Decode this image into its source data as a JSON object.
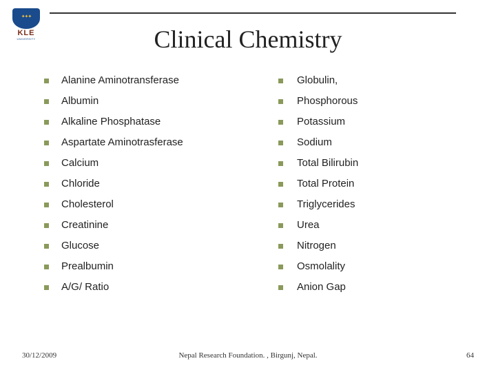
{
  "logo": {
    "kle": "KLE",
    "university": "UNIVERSITY"
  },
  "title": "Clinical Chemistry",
  "bullet_color": "#8a9a5b",
  "columns": {
    "left": [
      "Alanine Aminotransferase",
      "Albumin",
      "Alkaline Phosphatase",
      "Aspartate Aminotrasferase",
      "Calcium",
      "Chloride",
      "Cholesterol",
      "Creatinine",
      "Glucose",
      "Prealbumin",
      "A/G/ Ratio"
    ],
    "right": [
      "Globulin,",
      "Phosphorous",
      "Potassium",
      "Sodium",
      "Total Bilirubin",
      "Total Protein",
      "Triglycerides",
      "Urea",
      "Nitrogen",
      "Osmolality",
      "Anion Gap"
    ]
  },
  "footer": {
    "date": "30/12/2009",
    "center": "Nepal Research Foundation. , Birgunj, Nepal.",
    "page": "64"
  }
}
